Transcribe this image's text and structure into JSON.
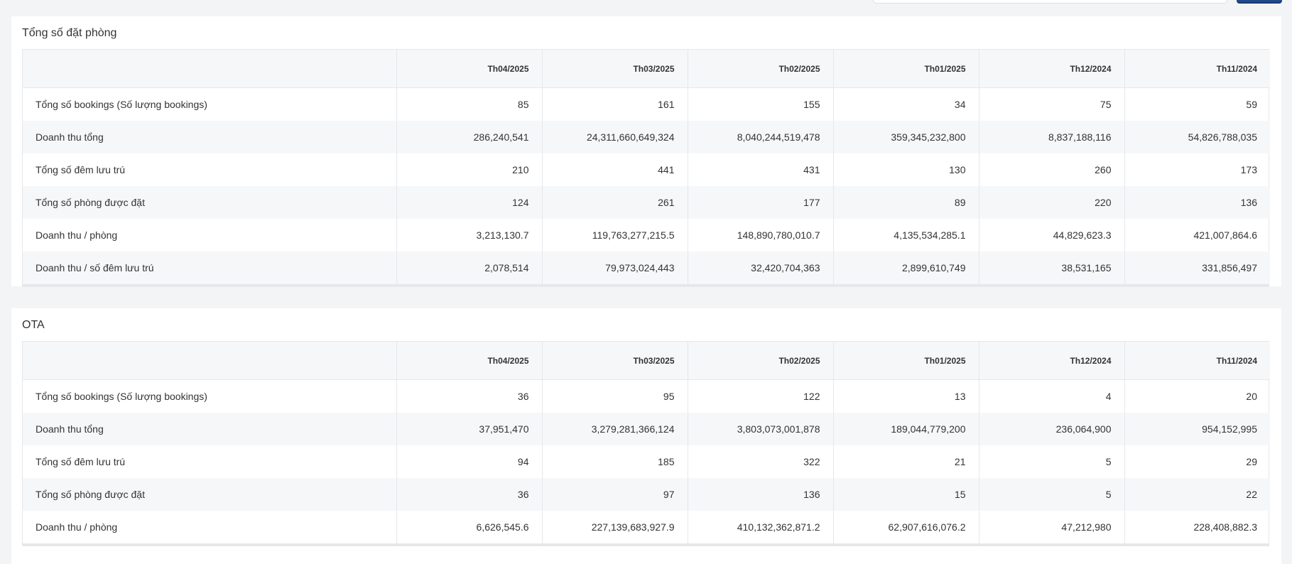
{
  "sections": [
    {
      "title": "Tổng số đặt phòng",
      "columns": [
        "",
        "Th04/2025",
        "Th03/2025",
        "Th02/2025",
        "Th01/2025",
        "Th12/2024",
        "Th11/2024"
      ],
      "rows": [
        [
          "Tổng số bookings (Số lượng bookings)",
          "85",
          "161",
          "155",
          "34",
          "75",
          "59"
        ],
        [
          "Doanh thu tổng",
          "286,240,541",
          "24,311,660,649,324",
          "8,040,244,519,478",
          "359,345,232,800",
          "8,837,188,116",
          "54,826,788,035"
        ],
        [
          "Tổng số đêm lưu trú",
          "210",
          "441",
          "431",
          "130",
          "260",
          "173"
        ],
        [
          "Tổng số phòng được đặt",
          "124",
          "261",
          "177",
          "89",
          "220",
          "136"
        ],
        [
          "Doanh thu / phòng",
          "3,213,130.7",
          "119,763,277,215.5",
          "148,890,780,010.7",
          "4,135,534,285.1",
          "44,829,623.3",
          "421,007,864.6"
        ],
        [
          "Doanh thu / số đêm lưu trú",
          "2,078,514",
          "79,973,024,443",
          "32,420,704,363",
          "2,899,610,749",
          "38,531,165",
          "331,856,497"
        ]
      ]
    },
    {
      "title": "OTA",
      "columns": [
        "",
        "Th04/2025",
        "Th03/2025",
        "Th02/2025",
        "Th01/2025",
        "Th12/2024",
        "Th11/2024"
      ],
      "rows": [
        [
          "Tổng số bookings (Số lượng bookings)",
          "36",
          "95",
          "122",
          "13",
          "4",
          "20"
        ],
        [
          "Doanh thu tổng",
          "37,951,470",
          "3,279,281,366,124",
          "3,803,073,001,878",
          "189,044,779,200",
          "236,064,900",
          "954,152,995"
        ],
        [
          "Tổng số đêm lưu trú",
          "94",
          "185",
          "322",
          "21",
          "5",
          "29"
        ],
        [
          "Tổng số phòng được đặt",
          "36",
          "97",
          "136",
          "15",
          "5",
          "22"
        ],
        [
          "Doanh thu / phòng",
          "6,626,545.6",
          "227,139,683,927.9",
          "410,132,362,871.2",
          "62,907,616,076.2",
          "47,212,980",
          "228,408,882.3"
        ]
      ]
    }
  ]
}
